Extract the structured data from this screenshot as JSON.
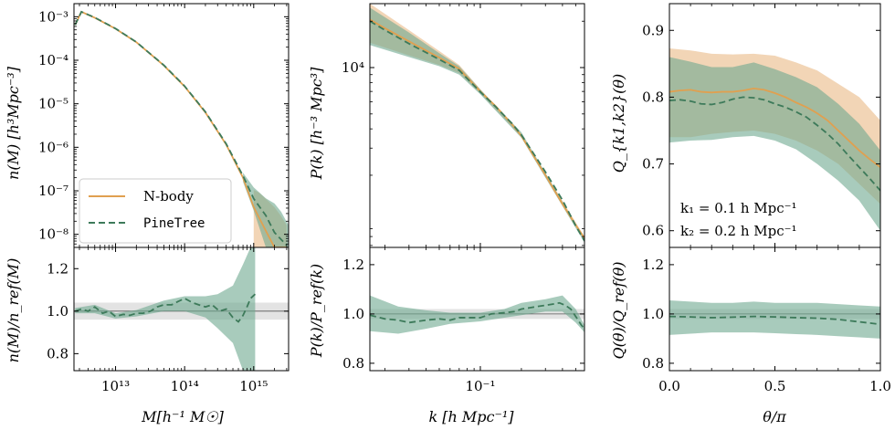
{
  "colors": {
    "nbody": "#e0a050",
    "nbody_band": "#e8b27a",
    "pinetree": "#3d7a5a",
    "pinetree_band": "#6ea88f",
    "ref_band": "#d9d9d9"
  },
  "legend": {
    "nbody_label": "N-body",
    "pinetree_label": "PineTree",
    "placement": "lower-left"
  },
  "annotations": {
    "k1": "k₁ = 0.1 h Mpc⁻¹",
    "k2": "k₂ = 0.2 h Mpc⁻¹"
  },
  "chart_data": [
    {
      "id": "hmf",
      "type": "line",
      "ylabel": "n(M) [h³Mpc⁻³]",
      "xscale": "log",
      "yscale": "log",
      "xlim": [
        2500000000000.0,
        3200000000000000.0
      ],
      "ylim": [
        5e-09,
        0.002
      ],
      "yticks": [
        {
          "v": 1e-08,
          "l": "10⁻⁸"
        },
        {
          "v": 1e-07,
          "l": "10⁻⁷"
        },
        {
          "v": 1e-06,
          "l": "10⁻⁶"
        },
        {
          "v": 1e-05,
          "l": "10⁻⁵"
        },
        {
          "v": 0.0001,
          "l": "10⁻⁴"
        },
        {
          "v": 0.001,
          "l": "10⁻³"
        }
      ],
      "x": [
        2600000000000.0,
        3200000000000.0,
        5000000000000.0,
        10000000000000.0,
        20000000000000.0,
        50000000000000.0,
        100000000000000.0,
        200000000000000.0,
        400000000000000.0,
        700000000000000.0,
        1000000000000000.0,
        1500000000000000.0,
        2000000000000000.0,
        3000000000000000.0
      ],
      "series": [
        {
          "name": "N-body",
          "values": [
            0.00065,
            0.0013,
            0.00095,
            0.00053,
            0.00026,
            7.6e-05,
            2.5e-05,
            6.3e-06,
            1.15e-06,
            2e-07,
            4.2e-08,
            1.2e-08,
            5e-09,
            5e-09
          ]
        },
        {
          "name": "PineTree",
          "values": [
            0.00065,
            0.0013,
            0.00096,
            0.000535,
            0.000262,
            7.7e-05,
            2.55e-05,
            6.5e-06,
            1.2e-06,
            2.2e-07,
            6.6e-08,
            2.7e-08,
            1.1e-08,
            5.6e-09
          ]
        }
      ],
      "bands": [
        {
          "name": "N-body",
          "x": [
            1000000000000000.0,
            1200000000000000.0,
            1500000000000000.0,
            2000000000000000.0,
            2500000000000000.0,
            3000000000000000.0
          ],
          "lo": [
            5e-09,
            5e-09,
            5e-09,
            5e-09,
            5e-09,
            5e-09
          ],
          "hi": [
            1.05e-07,
            9e-08,
            6.5e-08,
            4.2e-08,
            2.6e-08,
            1.6e-08
          ]
        },
        {
          "name": "PineTree",
          "x": [
            700000000000000.0,
            1000000000000000.0,
            1500000000000000.0,
            2000000000000000.0,
            2500000000000000.0,
            3200000000000000.0
          ],
          "lo": [
            1.6e-07,
            3.5e-08,
            5e-09,
            5e-09,
            5e-09,
            5e-09
          ],
          "hi": [
            2.6e-07,
            1.2e-07,
            6.7e-08,
            5.1e-08,
            3.3e-08,
            1.6e-08
          ]
        }
      ]
    },
    {
      "id": "hmf_ratio",
      "type": "line",
      "ylabel": "n(M)/n_ref(M)",
      "xlabel": "M[h⁻¹ M☉]",
      "xscale": "log",
      "xlim": [
        2500000000000.0,
        3200000000000000.0
      ],
      "ylim": [
        0.72,
        1.3
      ],
      "yticks": [
        {
          "v": 0.8,
          "l": "0.8"
        },
        {
          "v": 1.0,
          "l": "1.0"
        },
        {
          "v": 1.2,
          "l": "1.2"
        }
      ],
      "xticks": [
        {
          "v": 10000000000000.0,
          "l": "10¹³"
        },
        {
          "v": 100000000000000.0,
          "l": "10¹⁴"
        },
        {
          "v": 1000000000000000.0,
          "l": "10¹⁵"
        }
      ],
      "ref_band": [
        0.96,
        1.04
      ],
      "x": [
        2600000000000.0,
        3200000000000.0,
        4000000000000.0,
        5000000000000.0,
        6500000000000.0,
        8000000000000.0,
        10000000000000.0,
        13000000000000.0,
        16000000000000.0,
        20000000000000.0,
        25000000000000.0,
        32000000000000.0,
        40000000000000.0,
        50000000000000.0,
        65000000000000.0,
        80000000000000.0,
        100000000000000.0,
        130000000000000.0,
        160000000000000.0,
        200000000000000.0,
        250000000000000.0,
        320000000000000.0,
        400000000000000.0,
        500000000000000.0,
        600000000000000.0,
        700000000000000.0,
        800000000000000.0,
        900000000000000.0,
        1050000000000000.0
      ],
      "series": [
        {
          "name": "PineTree",
          "values": [
            1.0,
            1.01,
            1.0,
            1.02,
            0.99,
            1.0,
            0.975,
            0.985,
            0.98,
            0.99,
            0.99,
            1.0,
            1.02,
            1.03,
            1.03,
            1.045,
            1.06,
            1.04,
            1.03,
            1.02,
            1.03,
            1.0,
            1.01,
            0.97,
            0.95,
            0.98,
            1.02,
            1.06,
            1.08
          ]
        }
      ],
      "bands": [
        {
          "name": "PineTree",
          "x": [
            2600000000000.0,
            5000000000000.0,
            10000000000000.0,
            20000000000000.0,
            50000000000000.0,
            100000000000000.0,
            200000000000000.0,
            300000000000000.0,
            500000000000000.0,
            700000000000000.0,
            900000000000000.0,
            1050000000000000.0
          ],
          "lo": [
            0.99,
            0.99,
            0.965,
            0.975,
            1.0,
            1.0,
            0.97,
            0.92,
            0.85,
            0.72,
            0.72,
            0.72
          ],
          "hi": [
            1.015,
            1.03,
            0.99,
            1.005,
            1.05,
            1.07,
            1.07,
            1.08,
            1.12,
            1.22,
            1.3,
            1.3
          ]
        }
      ]
    },
    {
      "id": "pk",
      "type": "line",
      "ylabel": "P(k) [h⁻³ Mpc³]",
      "xscale": "log",
      "yscale": "log",
      "xlim": [
        0.0155,
        0.58
      ],
      "ylim": [
        680,
        26000
      ],
      "yticks": [
        {
          "v": 10000,
          "l": "10⁴"
        }
      ],
      "x": [
        0.0155,
        0.02,
        0.03,
        0.05,
        0.07,
        0.1,
        0.13,
        0.17,
        0.2,
        0.25,
        0.3,
        0.4,
        0.5,
        0.58
      ],
      "series": [
        {
          "name": "N-body",
          "values": [
            20500,
            18000,
            14800,
            11600,
            9800,
            7000,
            5600,
            4300,
            3600,
            2600,
            2000,
            1300,
            950,
            780
          ]
        },
        {
          "name": "PineTree",
          "values": [
            20000,
            17500,
            14300,
            11300,
            9600,
            6950,
            5550,
            4350,
            3650,
            2700,
            2100,
            1380,
            940,
            750
          ]
        }
      ],
      "bands": [
        {
          "name": "N-body",
          "x": [
            0.0155,
            0.03,
            0.05,
            0.07,
            0.1,
            0.2,
            0.58
          ],
          "lo": [
            14500,
            12000,
            10400,
            9200,
            6800,
            3550,
            760
          ],
          "hi": [
            26000,
            17500,
            12800,
            10400,
            7250,
            3700,
            800
          ]
        },
        {
          "name": "PineTree",
          "x": [
            0.0155,
            0.03,
            0.05,
            0.07,
            0.1,
            0.2,
            0.58
          ],
          "lo": [
            14000,
            11700,
            10200,
            9000,
            6700,
            3500,
            730
          ],
          "hi": [
            24500,
            16900,
            12400,
            10200,
            7200,
            3800,
            770
          ]
        }
      ]
    },
    {
      "id": "pk_ratio",
      "type": "line",
      "ylabel": "P(k)/P_ref(k)",
      "xlabel": "k [h Mpc⁻¹]",
      "xscale": "log",
      "xlim": [
        0.0155,
        0.58
      ],
      "ylim": [
        0.77,
        1.27
      ],
      "yticks": [
        {
          "v": 0.8,
          "l": "0.8"
        },
        {
          "v": 1.0,
          "l": "1.0"
        },
        {
          "v": 1.2,
          "l": "1.2"
        }
      ],
      "xticks": [
        {
          "v": 0.1,
          "l": "10⁻¹"
        }
      ],
      "ref_band": [
        0.98,
        1.02
      ],
      "x": [
        0.0155,
        0.02,
        0.025,
        0.03,
        0.04,
        0.05,
        0.06,
        0.07,
        0.08,
        0.1,
        0.12,
        0.15,
        0.18,
        0.2,
        0.23,
        0.26,
        0.3,
        0.34,
        0.38,
        0.42,
        0.46,
        0.5,
        0.55,
        0.58
      ],
      "series": [
        {
          "name": "PineTree",
          "values": [
            0.995,
            0.98,
            0.975,
            0.965,
            0.975,
            0.98,
            0.975,
            0.985,
            0.985,
            0.985,
            1.0,
            1.005,
            1.01,
            1.02,
            1.025,
            1.03,
            1.035,
            1.04,
            1.045,
            1.035,
            1.02,
            0.99,
            0.955,
            0.94
          ]
        }
      ],
      "bands": [
        {
          "name": "PineTree",
          "x": [
            0.0155,
            0.025,
            0.04,
            0.06,
            0.1,
            0.15,
            0.2,
            0.3,
            0.4,
            0.5,
            0.58
          ],
          "lo": [
            0.93,
            0.92,
            0.94,
            0.96,
            0.97,
            0.985,
            0.995,
            1.01,
            1.01,
            0.965,
            0.925
          ],
          "hi": [
            1.075,
            1.03,
            1.015,
            1.005,
            1.005,
            1.02,
            1.045,
            1.06,
            1.075,
            1.02,
            0.955
          ]
        }
      ]
    },
    {
      "id": "bispectrum",
      "type": "line",
      "ylabel": "Q_{k1,k2}(θ)",
      "xscale": "linear",
      "yscale": "linear",
      "xlim": [
        0.0,
        1.0
      ],
      "ylim": [
        0.575,
        0.94
      ],
      "yticks": [
        {
          "v": 0.6,
          "l": "0.6"
        },
        {
          "v": 0.7,
          "l": "0.7"
        },
        {
          "v": 0.8,
          "l": "0.8"
        },
        {
          "v": 0.9,
          "l": "0.9"
        }
      ],
      "x": [
        0.0,
        0.05,
        0.1,
        0.15,
        0.2,
        0.25,
        0.3,
        0.35,
        0.4,
        0.45,
        0.5,
        0.55,
        0.6,
        0.65,
        0.7,
        0.75,
        0.8,
        0.85,
        0.9,
        0.95,
        1.0
      ],
      "series": [
        {
          "name": "N-body",
          "values": [
            0.808,
            0.81,
            0.811,
            0.808,
            0.807,
            0.808,
            0.808,
            0.81,
            0.813,
            0.811,
            0.806,
            0.8,
            0.792,
            0.785,
            0.776,
            0.765,
            0.75,
            0.735,
            0.72,
            0.707,
            0.695
          ]
        },
        {
          "name": "PineTree",
          "values": [
            0.795,
            0.796,
            0.794,
            0.79,
            0.789,
            0.792,
            0.797,
            0.8,
            0.799,
            0.796,
            0.79,
            0.785,
            0.778,
            0.77,
            0.758,
            0.745,
            0.73,
            0.712,
            0.695,
            0.678,
            0.66
          ]
        }
      ],
      "bands": [
        {
          "name": "N-body",
          "x": [
            0.0,
            0.1,
            0.2,
            0.3,
            0.4,
            0.5,
            0.6,
            0.7,
            0.8,
            0.9,
            1.0
          ],
          "lo": [
            0.74,
            0.74,
            0.745,
            0.748,
            0.75,
            0.745,
            0.735,
            0.72,
            0.7,
            0.67,
            0.64
          ],
          "hi": [
            0.873,
            0.87,
            0.865,
            0.864,
            0.865,
            0.862,
            0.852,
            0.84,
            0.82,
            0.8,
            0.765
          ]
        },
        {
          "name": "PineTree",
          "x": [
            0.0,
            0.1,
            0.2,
            0.3,
            0.4,
            0.5,
            0.6,
            0.7,
            0.8,
            0.9,
            1.0
          ],
          "lo": [
            0.732,
            0.735,
            0.736,
            0.74,
            0.742,
            0.735,
            0.722,
            0.7,
            0.675,
            0.645,
            0.6
          ],
          "hi": [
            0.86,
            0.853,
            0.845,
            0.845,
            0.852,
            0.842,
            0.83,
            0.815,
            0.79,
            0.76,
            0.72
          ]
        }
      ]
    },
    {
      "id": "bispectrum_ratio",
      "type": "line",
      "ylabel": "Q(θ)/Q_ref(θ)",
      "xlabel": "θ/π",
      "xscale": "linear",
      "xlim": [
        0.0,
        1.0
      ],
      "ylim": [
        0.77,
        1.27
      ],
      "yticks": [
        {
          "v": 0.8,
          "l": "0.8"
        },
        {
          "v": 1.0,
          "l": "1.0"
        },
        {
          "v": 1.2,
          "l": "1.2"
        }
      ],
      "xticks": [
        {
          "v": 0.0,
          "l": "0.0"
        },
        {
          "v": 0.5,
          "l": "0.5"
        },
        {
          "v": 1.0,
          "l": "1.0"
        }
      ],
      "ref_band": [
        0.98,
        1.02
      ],
      "x": [
        0.0,
        0.1,
        0.2,
        0.3,
        0.4,
        0.5,
        0.6,
        0.7,
        0.8,
        0.9,
        1.0
      ],
      "series": [
        {
          "name": "PineTree",
          "values": [
            0.99,
            0.988,
            0.985,
            0.987,
            0.99,
            0.988,
            0.985,
            0.983,
            0.978,
            0.968,
            0.958
          ]
        }
      ],
      "bands": [
        {
          "name": "PineTree",
          "x": [
            0.0,
            0.1,
            0.2,
            0.3,
            0.4,
            0.5,
            0.6,
            0.7,
            0.8,
            0.9,
            1.0
          ],
          "lo": [
            0.915,
            0.92,
            0.925,
            0.925,
            0.925,
            0.922,
            0.918,
            0.915,
            0.91,
            0.905,
            0.9
          ],
          "hi": [
            1.055,
            1.05,
            1.045,
            1.045,
            1.05,
            1.045,
            1.045,
            1.045,
            1.04,
            1.035,
            1.03
          ]
        }
      ]
    }
  ]
}
